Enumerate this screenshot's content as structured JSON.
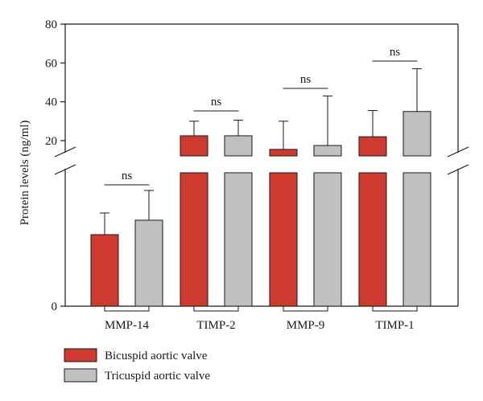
{
  "chart_data": {
    "type": "bar",
    "title": "",
    "xlabel": "",
    "ylabel": "Protein levels (ng/ml)",
    "categories": [
      "MMP-14",
      "TIMP-2",
      "MMP-9",
      "TIMP-1"
    ],
    "series": [
      {
        "name": "Bicuspid aortic valve",
        "color": "#cf3a2e",
        "values": [
          null,
          22.5,
          15.5,
          22
        ],
        "errors": [
          null,
          30,
          30,
          35.5
        ]
      },
      {
        "name": "Tricuspid aortic valve",
        "color": "#c0c0c0",
        "values": [
          null,
          22.5,
          17.5,
          35
        ],
        "errors": [
          null,
          30.5,
          43,
          57
        ]
      }
    ],
    "upper_segment": {
      "ylim": [
        12,
        80
      ],
      "ticks": [
        "20",
        "40",
        "60",
        "80"
      ]
    },
    "lower_segment": {
      "ticks": [
        "0"
      ],
      "bottom_value": "0"
    },
    "significance": [
      "ns",
      "ns",
      "ns",
      "ns"
    ],
    "grid": false,
    "legend": "bottom-left"
  }
}
